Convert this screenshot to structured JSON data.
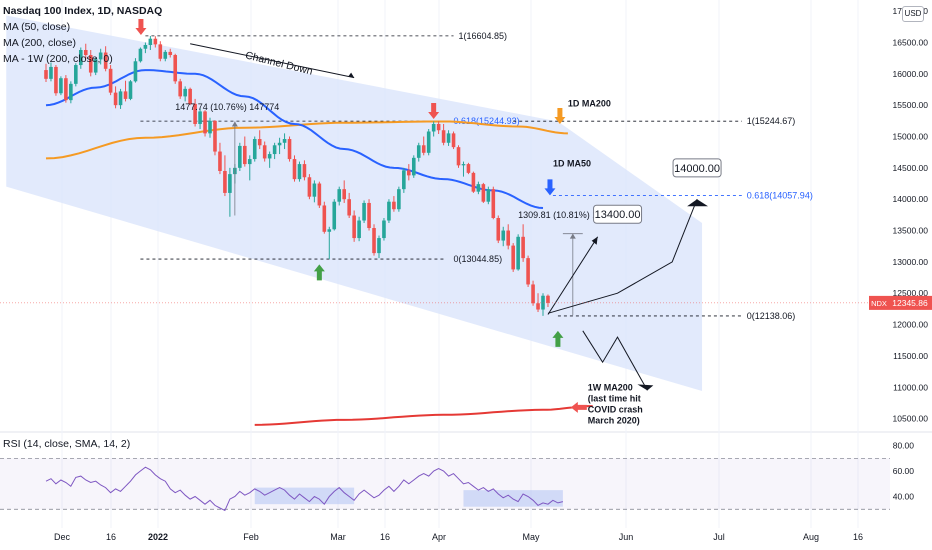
{
  "legend": {
    "title": "Nasdaq 100 Index, 1D, NASDAQ",
    "ma50": "MA (50, close)",
    "ma200": "MA (200, close)",
    "ma1w": "MA - 1W (200, close, 0)",
    "rsi": "RSI (14, close, SMA, 14, 2)"
  },
  "currency": "USD",
  "colors": {
    "bull": "#26a69a",
    "bear": "#ef5350",
    "ma50": "#2962ff",
    "ma200": "#f59a23",
    "ma1w": "#e53935",
    "channel": "#dbe5fb",
    "rsi": "#7e57c2",
    "price_tag": "#ef5350"
  },
  "annotations": {
    "channel_down": "Channel Down",
    "ma200_label": "1D MA200",
    "ma50_label": "1D MA50",
    "fib_high": "1(16604.85)",
    "fib_618_left": "0.618(15244.93)",
    "fib_1_right": "1(15244.67)",
    "fib_618_right": "0.618(14057.94)",
    "fib_0_left": "0(13044.85)",
    "fib_0_right": "0(12138.06)",
    "measure_left": "1477.74 (10.76%) 147774",
    "measure_right": "1309.81 (10.81%) 130",
    "target_1": "13400.00",
    "target_2": "14000.00",
    "ma1w_note_1": "1W MA200",
    "ma1w_note_2": "(last time hit",
    "ma1w_note_3": "COVID crash",
    "ma1w_note_4": "March 2020)"
  },
  "last_price": {
    "symbol": "NDX",
    "value": "12345.86",
    "y": 12345.86
  },
  "chart_data": [
    {
      "type": "candlestick",
      "title": "Nasdaq 100 Index, 1D, NASDAQ",
      "ylim": [
        10350,
        17050
      ],
      "y_ticks": [
        "10500.00",
        "11000.00",
        "11500.00",
        "12000.00",
        "12500.00",
        "13000.00",
        "13500.00",
        "14000.00",
        "14500.00",
        "15000.00",
        "15500.00",
        "16000.00",
        "16500.00",
        "17000.00"
      ],
      "x_ticks": [
        "Dec",
        "16",
        "2022",
        "Feb",
        "Mar",
        "16",
        "Apr",
        "May",
        "Jun",
        "Jul",
        "Aug",
        "16"
      ],
      "candles": [
        {
          "o": 16060,
          "h": 16160,
          "l": 15870,
          "c": 15920
        },
        {
          "o": 15920,
          "h": 16180,
          "l": 15880,
          "c": 16110
        },
        {
          "o": 16110,
          "h": 16140,
          "l": 15650,
          "c": 15690
        },
        {
          "o": 15690,
          "h": 15960,
          "l": 15660,
          "c": 15930
        },
        {
          "o": 15930,
          "h": 15980,
          "l": 15540,
          "c": 15580
        },
        {
          "o": 15580,
          "h": 15880,
          "l": 15530,
          "c": 15840
        },
        {
          "o": 15840,
          "h": 16170,
          "l": 15800,
          "c": 16140
        },
        {
          "o": 16140,
          "h": 16420,
          "l": 16080,
          "c": 16380
        },
        {
          "o": 16380,
          "h": 16480,
          "l": 16230,
          "c": 16300
        },
        {
          "o": 16300,
          "h": 16380,
          "l": 15960,
          "c": 16020
        },
        {
          "o": 16020,
          "h": 16260,
          "l": 15980,
          "c": 16230
        },
        {
          "o": 16230,
          "h": 16400,
          "l": 16150,
          "c": 16340
        },
        {
          "o": 16340,
          "h": 16440,
          "l": 16040,
          "c": 16080
        },
        {
          "o": 16080,
          "h": 16140,
          "l": 15660,
          "c": 15700
        },
        {
          "o": 15700,
          "h": 15800,
          "l": 15450,
          "c": 15500
        },
        {
          "o": 15500,
          "h": 15760,
          "l": 15440,
          "c": 15720
        },
        {
          "o": 15720,
          "h": 15890,
          "l": 15560,
          "c": 15600
        },
        {
          "o": 15600,
          "h": 15900,
          "l": 15580,
          "c": 15880
        },
        {
          "o": 15880,
          "h": 16250,
          "l": 15860,
          "c": 16200
        },
        {
          "o": 16200,
          "h": 16420,
          "l": 16180,
          "c": 16400
        },
        {
          "o": 16400,
          "h": 16500,
          "l": 16330,
          "c": 16460
        },
        {
          "o": 16460,
          "h": 16604,
          "l": 16380,
          "c": 16560
        },
        {
          "o": 16560,
          "h": 16600,
          "l": 16420,
          "c": 16470
        },
        {
          "o": 16470,
          "h": 16520,
          "l": 16200,
          "c": 16240
        },
        {
          "o": 16240,
          "h": 16380,
          "l": 16200,
          "c": 16350
        },
        {
          "o": 16350,
          "h": 16400,
          "l": 16260,
          "c": 16300
        },
        {
          "o": 16300,
          "h": 16320,
          "l": 15840,
          "c": 15880
        },
        {
          "o": 15880,
          "h": 15920,
          "l": 15600,
          "c": 15640
        },
        {
          "o": 15640,
          "h": 15800,
          "l": 15560,
          "c": 15760
        },
        {
          "o": 15760,
          "h": 15780,
          "l": 15500,
          "c": 15520
        },
        {
          "o": 15520,
          "h": 15600,
          "l": 15160,
          "c": 15200
        },
        {
          "o": 15200,
          "h": 15450,
          "l": 15120,
          "c": 15400
        },
        {
          "o": 15400,
          "h": 15420,
          "l": 15000,
          "c": 15050
        },
        {
          "o": 15050,
          "h": 15300,
          "l": 14980,
          "c": 15250
        },
        {
          "o": 15250,
          "h": 15260,
          "l": 14700,
          "c": 14760
        },
        {
          "o": 14760,
          "h": 14900,
          "l": 14400,
          "c": 14450
        },
        {
          "o": 14450,
          "h": 14700,
          "l": 14050,
          "c": 14100
        },
        {
          "o": 14100,
          "h": 14500,
          "l": 13720,
          "c": 14400
        },
        {
          "o": 14400,
          "h": 14560,
          "l": 14250,
          "c": 14500
        },
        {
          "o": 14500,
          "h": 14900,
          "l": 14450,
          "c": 14850
        },
        {
          "o": 14850,
          "h": 15000,
          "l": 14520,
          "c": 14560
        },
        {
          "o": 14560,
          "h": 14700,
          "l": 14300,
          "c": 14640
        },
        {
          "o": 14640,
          "h": 15000,
          "l": 14600,
          "c": 14960
        },
        {
          "o": 14960,
          "h": 15100,
          "l": 14800,
          "c": 14860
        },
        {
          "o": 14860,
          "h": 14920,
          "l": 14600,
          "c": 14650
        },
        {
          "o": 14650,
          "h": 14760,
          "l": 14500,
          "c": 14720
        },
        {
          "o": 14720,
          "h": 14900,
          "l": 14640,
          "c": 14860
        },
        {
          "o": 14860,
          "h": 14980,
          "l": 14720,
          "c": 14900
        },
        {
          "o": 14900,
          "h": 15050,
          "l": 14800,
          "c": 14960
        },
        {
          "o": 14960,
          "h": 15000,
          "l": 14600,
          "c": 14640
        },
        {
          "o": 14640,
          "h": 14700,
          "l": 14280,
          "c": 14320
        },
        {
          "o": 14320,
          "h": 14600,
          "l": 14280,
          "c": 14560
        },
        {
          "o": 14560,
          "h": 14620,
          "l": 14300,
          "c": 14350
        },
        {
          "o": 14350,
          "h": 14400,
          "l": 14000,
          "c": 14040
        },
        {
          "o": 14040,
          "h": 14300,
          "l": 13950,
          "c": 14250
        },
        {
          "o": 14250,
          "h": 14280,
          "l": 13860,
          "c": 13900
        },
        {
          "o": 13900,
          "h": 13960,
          "l": 13450,
          "c": 13480
        },
        {
          "o": 13480,
          "h": 13560,
          "l": 13044,
          "c": 13520
        },
        {
          "o": 13520,
          "h": 14000,
          "l": 13500,
          "c": 13960
        },
        {
          "o": 13960,
          "h": 14200,
          "l": 13900,
          "c": 14160
        },
        {
          "o": 14160,
          "h": 14300,
          "l": 13940,
          "c": 14000
        },
        {
          "o": 14000,
          "h": 14100,
          "l": 13700,
          "c": 13740
        },
        {
          "o": 13740,
          "h": 13820,
          "l": 13320,
          "c": 13380
        },
        {
          "o": 13380,
          "h": 13720,
          "l": 13330,
          "c": 13660
        },
        {
          "o": 13660,
          "h": 13980,
          "l": 13620,
          "c": 13940
        },
        {
          "o": 13940,
          "h": 14000,
          "l": 13500,
          "c": 13540
        },
        {
          "o": 13540,
          "h": 13600,
          "l": 13100,
          "c": 13140
        },
        {
          "o": 13140,
          "h": 13420,
          "l": 13060,
          "c": 13380
        },
        {
          "o": 13380,
          "h": 13700,
          "l": 13340,
          "c": 13660
        },
        {
          "o": 13660,
          "h": 14000,
          "l": 13620,
          "c": 13960
        },
        {
          "o": 13960,
          "h": 14050,
          "l": 13800,
          "c": 13840
        },
        {
          "o": 13840,
          "h": 14200,
          "l": 13800,
          "c": 14160
        },
        {
          "o": 14160,
          "h": 14500,
          "l": 14100,
          "c": 14460
        },
        {
          "o": 14460,
          "h": 14560,
          "l": 14300,
          "c": 14380
        },
        {
          "o": 14380,
          "h": 14700,
          "l": 14340,
          "c": 14660
        },
        {
          "o": 14660,
          "h": 14900,
          "l": 14600,
          "c": 14860
        },
        {
          "o": 14860,
          "h": 15000,
          "l": 14700,
          "c": 14740
        },
        {
          "o": 14740,
          "h": 15120,
          "l": 14700,
          "c": 15080
        },
        {
          "o": 15080,
          "h": 15240,
          "l": 15000,
          "c": 15200
        },
        {
          "o": 15200,
          "h": 15245,
          "l": 15040,
          "c": 15100
        },
        {
          "o": 15100,
          "h": 15200,
          "l": 14860,
          "c": 14900
        },
        {
          "o": 14900,
          "h": 15100,
          "l": 14850,
          "c": 15050
        },
        {
          "o": 15050,
          "h": 15080,
          "l": 14800,
          "c": 14830
        },
        {
          "o": 14830,
          "h": 14860,
          "l": 14500,
          "c": 14540
        },
        {
          "o": 14540,
          "h": 14600,
          "l": 14360,
          "c": 14560
        },
        {
          "o": 14560,
          "h": 14580,
          "l": 14400,
          "c": 14420
        },
        {
          "o": 14420,
          "h": 14440,
          "l": 14100,
          "c": 14120
        },
        {
          "o": 14120,
          "h": 14280,
          "l": 14080,
          "c": 14240
        },
        {
          "o": 14240,
          "h": 14260,
          "l": 13940,
          "c": 13960
        },
        {
          "o": 13960,
          "h": 14200,
          "l": 13920,
          "c": 14160
        },
        {
          "o": 14160,
          "h": 14200,
          "l": 13680,
          "c": 13700
        },
        {
          "o": 13700,
          "h": 13740,
          "l": 13300,
          "c": 13340
        },
        {
          "o": 13340,
          "h": 13560,
          "l": 13250,
          "c": 13500
        },
        {
          "o": 13500,
          "h": 13600,
          "l": 13200,
          "c": 13260
        },
        {
          "o": 13260,
          "h": 13300,
          "l": 12840,
          "c": 12880
        },
        {
          "o": 12880,
          "h": 13440,
          "l": 12860,
          "c": 13400
        },
        {
          "o": 13400,
          "h": 13600,
          "l": 13000,
          "c": 13060
        },
        {
          "o": 13060,
          "h": 13100,
          "l": 12600,
          "c": 12640
        },
        {
          "o": 12640,
          "h": 12700,
          "l": 12300,
          "c": 12340
        },
        {
          "o": 12340,
          "h": 12500,
          "l": 12200,
          "c": 12240
        },
        {
          "o": 12240,
          "h": 12500,
          "l": 12138,
          "c": 12460
        },
        {
          "o": 12460,
          "h": 12480,
          "l": 12280,
          "c": 12346
        }
      ],
      "ma50": [
        [
          0,
          15500
        ],
        [
          10,
          15780
        ],
        [
          20,
          16060
        ],
        [
          30,
          16000
        ],
        [
          40,
          15640
        ],
        [
          50,
          15200
        ],
        [
          60,
          14800
        ],
        [
          70,
          14500
        ],
        [
          80,
          14320
        ],
        [
          90,
          14140
        ],
        [
          100,
          13860
        ]
      ],
      "ma200": [
        [
          0,
          14650
        ],
        [
          20,
          14980
        ],
        [
          40,
          15140
        ],
        [
          60,
          15220
        ],
        [
          80,
          15240
        ],
        [
          95,
          15160
        ],
        [
          105,
          15050
        ]
      ],
      "ma1w": [
        [
          42,
          10400
        ],
        [
          60,
          10480
        ],
        [
          80,
          10560
        ],
        [
          100,
          10640
        ],
        [
          110,
          10700
        ]
      ],
      "channel": {
        "upper": [
          [
            -8,
            16930
          ],
          [
            103,
            15240
          ],
          [
            132,
            13620
          ]
        ],
        "lower": [
          [
            -8,
            14200
          ],
          [
            132,
            10940
          ]
        ]
      },
      "last": 12345.86
    },
    {
      "type": "line",
      "title": "RSI (14, close, SMA, 14, 2)",
      "ylim": [
        20,
        82
      ],
      "y_ticks": [
        "40.00",
        "60.00",
        "80.00"
      ],
      "rsi": [
        52,
        54,
        50,
        53,
        51,
        48,
        55,
        56,
        53,
        51,
        52,
        49,
        47,
        43,
        46,
        44,
        48,
        52,
        57,
        60,
        63,
        61,
        57,
        54,
        52,
        46,
        43,
        45,
        41,
        38,
        40,
        37,
        34,
        37,
        33,
        31,
        29,
        38,
        40,
        44,
        41,
        43,
        46,
        44,
        41,
        43,
        45,
        47,
        45,
        41,
        38,
        42,
        39,
        36,
        40,
        38,
        34,
        40,
        44,
        47,
        43,
        40,
        37,
        42,
        45,
        42,
        39,
        41,
        45,
        48,
        44,
        48,
        53,
        50,
        53,
        56,
        58,
        56,
        60,
        62,
        60,
        56,
        58,
        54,
        50,
        51,
        48,
        45,
        47,
        44,
        46,
        42,
        39,
        41,
        38,
        36,
        42,
        40,
        37,
        33,
        35,
        34,
        37,
        35,
        36
      ]
    }
  ]
}
